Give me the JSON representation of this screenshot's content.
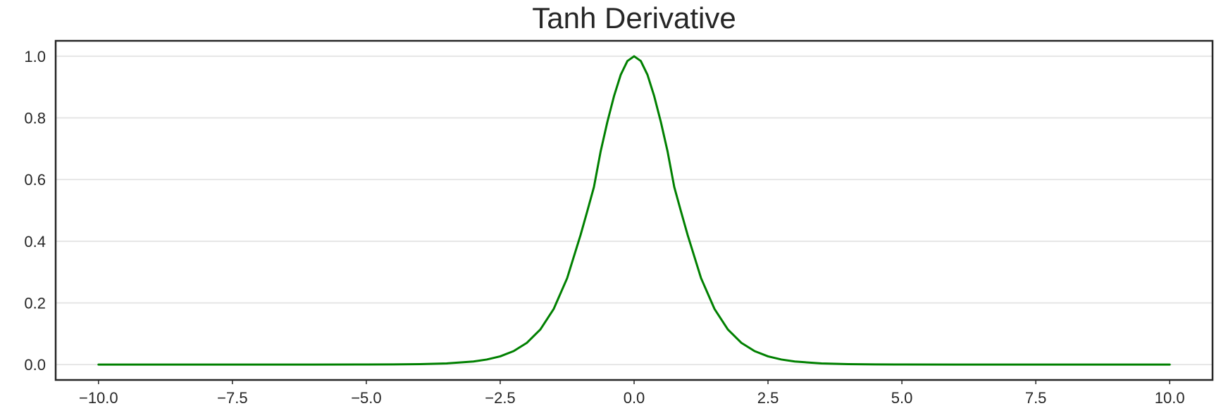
{
  "chart_data": {
    "type": "line",
    "title": "Tanh Derivative",
    "xlabel": "",
    "ylabel": "",
    "xlim": [
      -10.8,
      10.8
    ],
    "ylim": [
      -0.05,
      1.05
    ],
    "x_ticks": [
      -10.0,
      -7.5,
      -5.0,
      -2.5,
      0.0,
      2.5,
      5.0,
      7.5,
      10.0
    ],
    "x_tick_labels": [
      "−10.0",
      "−7.5",
      "−5.0",
      "−2.5",
      "0.0",
      "2.5",
      "5.0",
      "7.5",
      "10.0"
    ],
    "y_ticks": [
      0.0,
      0.2,
      0.4,
      0.6,
      0.8,
      1.0
    ],
    "y_tick_labels": [
      "0.0",
      "0.2",
      "0.4",
      "0.6",
      "0.8",
      "1.0"
    ],
    "grid": "horizontal",
    "legend": "none",
    "series": [
      {
        "color": "#008000",
        "x": [
          -10.0,
          -9.0,
          -8.0,
          -7.0,
          -6.0,
          -5.0,
          -4.5,
          -4.0,
          -3.5,
          -3.0,
          -2.75,
          -2.5,
          -2.25,
          -2.0,
          -1.75,
          -1.5,
          -1.25,
          -1.0,
          -0.875,
          -0.75,
          -0.625,
          -0.5,
          -0.375,
          -0.25,
          -0.125,
          0.0,
          0.125,
          0.25,
          0.375,
          0.5,
          0.625,
          0.75,
          0.875,
          1.0,
          1.25,
          1.5,
          1.75,
          2.0,
          2.25,
          2.5,
          2.75,
          3.0,
          3.5,
          4.0,
          4.5,
          5.0,
          6.0,
          7.0,
          8.0,
          9.0,
          10.0
        ],
        "y": [
          0.0,
          0.0,
          0.0,
          0.0,
          0.0,
          0.0002,
          0.0005,
          0.0013,
          0.0036,
          0.0099,
          0.0163,
          0.0266,
          0.0435,
          0.0707,
          0.1138,
          0.1807,
          0.2802,
          0.42,
          0.4968,
          0.5757,
          0.6911,
          0.7864,
          0.8707,
          0.9397,
          0.9845,
          1.0,
          0.9845,
          0.9397,
          0.8707,
          0.7864,
          0.6911,
          0.5757,
          0.4968,
          0.42,
          0.2802,
          0.1807,
          0.1138,
          0.0707,
          0.0435,
          0.0266,
          0.0163,
          0.0099,
          0.0036,
          0.0013,
          0.0005,
          0.0002,
          0.0,
          0.0,
          0.0,
          0.0,
          0.0
        ]
      }
    ]
  }
}
